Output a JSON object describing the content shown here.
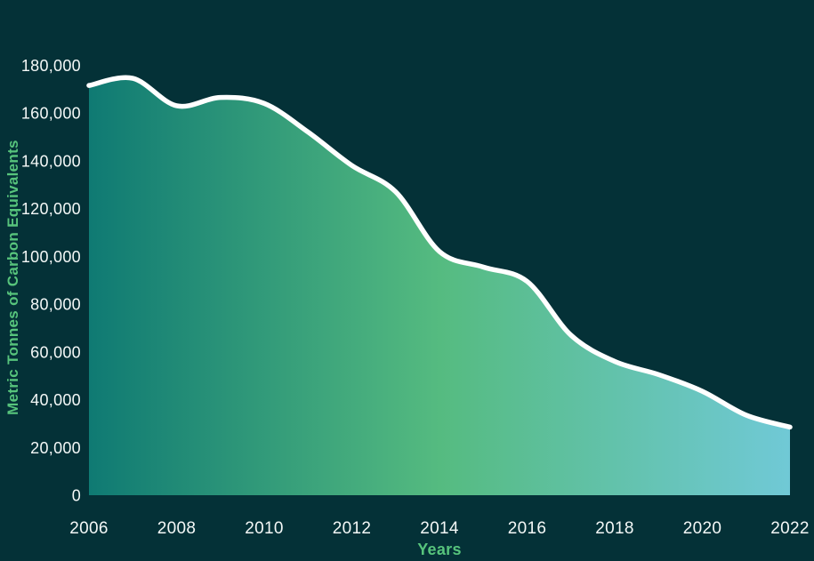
{
  "page": {
    "background": "#043137"
  },
  "chart_data": {
    "type": "area",
    "title": "",
    "xlabel": "Years",
    "ylabel": "Metric Tonnes of Carbon Equivalents",
    "x": [
      2006,
      2007,
      2008,
      2009,
      2010,
      2011,
      2012,
      2013,
      2014,
      2015,
      2016,
      2017,
      2018,
      2019,
      2020,
      2021,
      2022
    ],
    "values": [
      171500,
      174500,
      163000,
      166500,
      164000,
      152000,
      138000,
      127000,
      102000,
      95500,
      89500,
      67000,
      56000,
      50500,
      43500,
      33500,
      28500
    ],
    "xlim": [
      2006,
      2022
    ],
    "ylim": [
      0,
      180000
    ],
    "x_tick_values": [
      2006,
      2008,
      2010,
      2012,
      2014,
      2016,
      2018,
      2020,
      2022
    ],
    "x_tick_labels": [
      "2006",
      "2008",
      "2010",
      "2012",
      "2014",
      "2016",
      "2018",
      "2020",
      "2022"
    ],
    "y_tick_values": [
      0,
      20000,
      40000,
      60000,
      80000,
      100000,
      120000,
      140000,
      160000,
      180000
    ],
    "y_tick_labels": [
      "0",
      "20,000",
      "40,000",
      "60,000",
      "80,000",
      "100,000",
      "120,000",
      "140,000",
      "160,000",
      "180,000"
    ],
    "grid": false,
    "legend": null,
    "smooth": true,
    "colors": {
      "background": "#043137",
      "line": "#ffffff",
      "fill_gradient": [
        "#0f7a73",
        "#55bb80",
        "#70c9d6"
      ],
      "tick_label": "#f4f8f7",
      "axis_title": "#57c47c"
    }
  }
}
